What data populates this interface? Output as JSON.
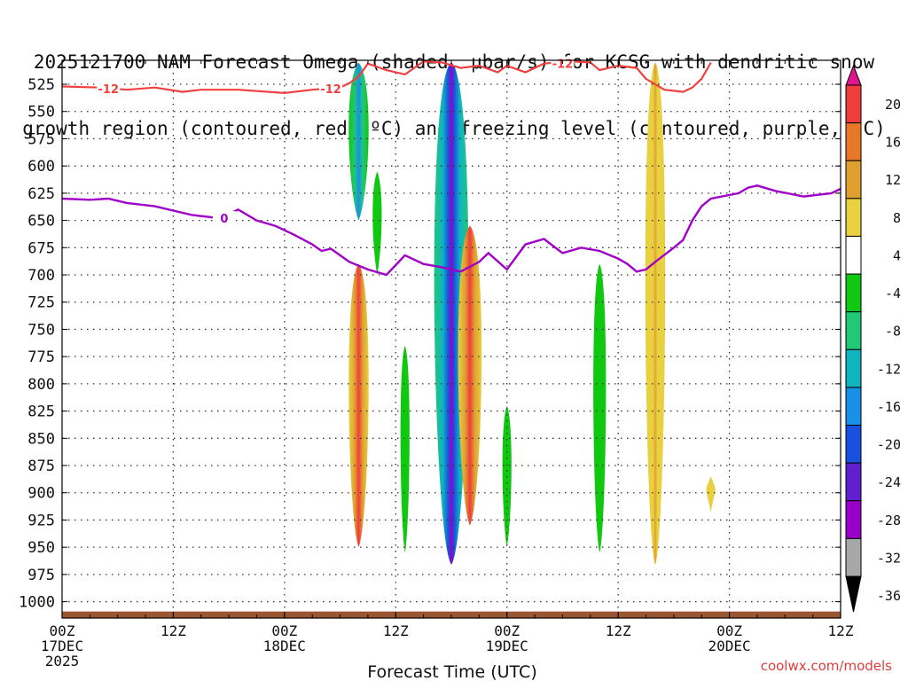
{
  "title_line1": "2025121700 NAM Forecast Omega (shaded, μbar/s) for KCSG with dendritic snow",
  "title_line2": "growth region (contoured, red, ºC) and freezing level (contoured, purple, ºC)",
  "credit": "coolwx.com/models",
  "colors": {
    "dgz": "#f04040",
    "freezing": "#a000c8",
    "terrain": "#9b5530",
    "grid": "#333333"
  },
  "chart_data": {
    "type": "time-height-omega",
    "xlabel": "Forecast Time (UTC)",
    "x_range_hours": [
      0,
      84
    ],
    "y_range_mb": [
      503,
      1015
    ],
    "pressure_ticks": [
      525,
      550,
      575,
      600,
      625,
      650,
      675,
      700,
      725,
      750,
      775,
      800,
      825,
      850,
      875,
      900,
      925,
      950,
      975,
      1000
    ],
    "time_ticks": [
      {
        "hour": 0,
        "line1": "00Z",
        "line2": "17DEC",
        "line3": "2025"
      },
      {
        "hour": 12,
        "line1": "12Z",
        "line2": "",
        "line3": ""
      },
      {
        "hour": 24,
        "line1": "00Z",
        "line2": "18DEC",
        "line3": ""
      },
      {
        "hour": 36,
        "line1": "12Z",
        "line2": "",
        "line3": ""
      },
      {
        "hour": 48,
        "line1": "00Z",
        "line2": "19DEC",
        "line3": ""
      },
      {
        "hour": 60,
        "line1": "12Z",
        "line2": "",
        "line3": ""
      },
      {
        "hour": 72,
        "line1": "00Z",
        "line2": "20DEC",
        "line3": ""
      },
      {
        "hour": 84,
        "line1": "12Z",
        "line2": "",
        "line3": ""
      }
    ],
    "colorbar": [
      {
        "label": "20",
        "color": "#f03c3c"
      },
      {
        "label": "16",
        "color": "#e87828"
      },
      {
        "label": "12",
        "color": "#e0a030"
      },
      {
        "label": "8",
        "color": "#e8d040"
      },
      {
        "label": "4",
        "color": "#ffffff"
      },
      {
        "label": "-4",
        "color": "#10c810"
      },
      {
        "label": "-8",
        "color": "#20c878"
      },
      {
        "label": "-12",
        "color": "#10b4c0"
      },
      {
        "label": "-16",
        "color": "#1890e8"
      },
      {
        "label": "-20",
        "color": "#1850e0"
      },
      {
        "label": "-24",
        "color": "#6020d0"
      },
      {
        "label": "-28",
        "color": "#9800c8"
      },
      {
        "label": "-32",
        "color": "#a8a8a8"
      },
      {
        "label": "-36",
        "color": "#000000"
      }
    ],
    "colorbar_top_color": "#e0148c",
    "dgz_label": "-12",
    "freezing_label": "0",
    "dgz_contour_12C": [
      [
        0,
        527
      ],
      [
        4,
        528
      ],
      [
        7,
        530
      ],
      [
        10,
        528
      ],
      [
        13,
        532
      ],
      [
        15,
        530
      ],
      [
        19,
        530
      ],
      [
        24,
        533
      ],
      [
        27,
        530
      ],
      [
        30,
        528
      ],
      [
        31,
        524
      ],
      [
        32,
        518
      ],
      [
        33,
        506
      ],
      [
        35,
        512
      ],
      [
        37,
        516
      ],
      [
        39,
        504
      ],
      [
        41,
        505
      ],
      [
        43,
        510
      ],
      [
        45,
        508
      ],
      [
        47,
        514
      ],
      [
        48,
        508
      ],
      [
        50,
        514
      ],
      [
        52,
        506
      ],
      [
        55,
        504
      ],
      [
        57,
        505
      ],
      [
        58,
        512
      ],
      [
        60,
        508
      ],
      [
        62,
        510
      ],
      [
        63,
        520
      ],
      [
        65,
        530
      ],
      [
        67,
        532
      ],
      [
        68,
        528
      ],
      [
        69,
        520
      ],
      [
        70,
        505
      ]
    ],
    "freezing_level": [
      [
        0,
        630
      ],
      [
        3,
        631
      ],
      [
        5,
        630
      ],
      [
        7,
        634
      ],
      [
        10,
        637
      ],
      [
        12,
        641
      ],
      [
        14,
        645
      ],
      [
        17,
        648
      ],
      [
        19,
        640
      ],
      [
        21,
        650
      ],
      [
        23,
        655
      ],
      [
        25,
        663
      ],
      [
        27,
        672
      ],
      [
        28,
        678
      ],
      [
        29,
        676
      ],
      [
        31,
        688
      ],
      [
        33,
        695
      ],
      [
        35,
        700
      ],
      [
        37,
        682
      ],
      [
        39,
        690
      ],
      [
        41,
        693
      ],
      [
        43,
        697
      ],
      [
        45,
        688
      ],
      [
        46,
        680
      ],
      [
        48,
        695
      ],
      [
        50,
        672
      ],
      [
        52,
        667
      ],
      [
        54,
        680
      ],
      [
        56,
        675
      ],
      [
        58,
        678
      ],
      [
        60,
        685
      ],
      [
        61,
        690
      ],
      [
        62,
        697
      ],
      [
        63,
        695
      ],
      [
        64,
        688
      ],
      [
        66,
        675
      ],
      [
        67,
        668
      ],
      [
        68,
        650
      ],
      [
        69,
        637
      ],
      [
        70,
        630
      ],
      [
        73,
        625
      ],
      [
        74,
        620
      ],
      [
        75,
        618
      ],
      [
        77,
        623
      ],
      [
        80,
        628
      ],
      [
        83,
        625
      ],
      [
        84,
        621
      ]
    ],
    "terrain_mb": 1009,
    "omega_features": [
      {
        "name": "upward-cell-h32",
        "hour": 32,
        "top": 505,
        "bottom": 650,
        "value": -14
      },
      {
        "name": "downward-cell-h32",
        "hour": 32,
        "top": 690,
        "bottom": 950,
        "value": 16
      },
      {
        "name": "upward-cell-h34",
        "hour": 34,
        "top": 605,
        "bottom": 700,
        "value": -6
      },
      {
        "name": "upward-cell-h37",
        "hour": 37,
        "top": 765,
        "bottom": 955,
        "value": -6
      },
      {
        "name": "upward-cell-h42",
        "hour": 42,
        "top": 505,
        "bottom": 966,
        "value": -30
      },
      {
        "name": "downward-cell-h44",
        "hour": 44,
        "top": 655,
        "bottom": 930,
        "value": 20
      },
      {
        "name": "upward-cell-h48",
        "hour": 48,
        "top": 820,
        "bottom": 950,
        "value": -6
      },
      {
        "name": "upward-cell-h58",
        "hour": 58,
        "top": 690,
        "bottom": 955,
        "value": -8
      },
      {
        "name": "downward-cell-h64",
        "hour": 64,
        "top": 505,
        "bottom": 966,
        "value": 12
      },
      {
        "name": "downward-cell-h70",
        "hour": 70,
        "top": 885,
        "bottom": 918,
        "value": 6
      }
    ]
  }
}
